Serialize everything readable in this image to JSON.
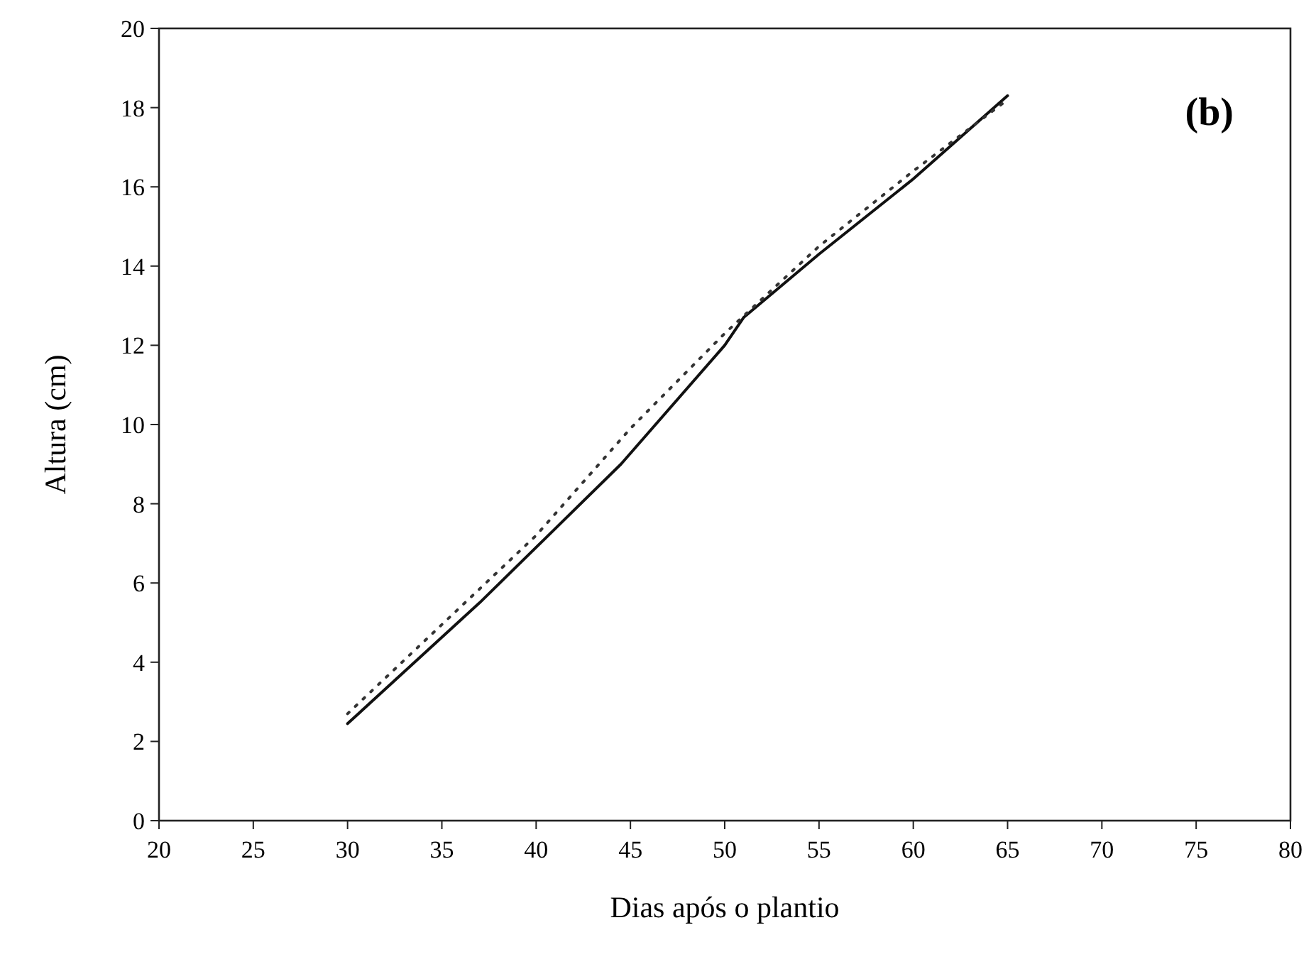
{
  "chart_data": {
    "type": "line",
    "xlabel": "Dias após o plantio",
    "ylabel": "Altura (cm)",
    "annotations": [
      "(b)"
    ],
    "xlim": [
      20,
      80
    ],
    "xticks": [
      20,
      25,
      30,
      35,
      40,
      45,
      50,
      55,
      60,
      65,
      70,
      75,
      80
    ],
    "ylim": [
      0,
      20
    ],
    "yticks": [
      0,
      2,
      4,
      6,
      8,
      10,
      12,
      14,
      16,
      18,
      20
    ],
    "grid": false,
    "marker": "none",
    "series": [
      {
        "color": "#111111",
        "line_style": "solid",
        "x": [
          30,
          37,
          44.5,
          50,
          51,
          55,
          60,
          65
        ],
        "values": [
          2.45,
          5.5,
          9,
          12,
          12.7,
          14.3,
          16.2,
          18.3
        ]
      },
      {
        "color": "#333333",
        "line_style": "dotted",
        "x": [
          30,
          40,
          45,
          50,
          55,
          60,
          65
        ],
        "values": [
          2.7,
          7.2,
          9.9,
          12.3,
          14.5,
          16.4,
          18.2
        ]
      }
    ]
  }
}
